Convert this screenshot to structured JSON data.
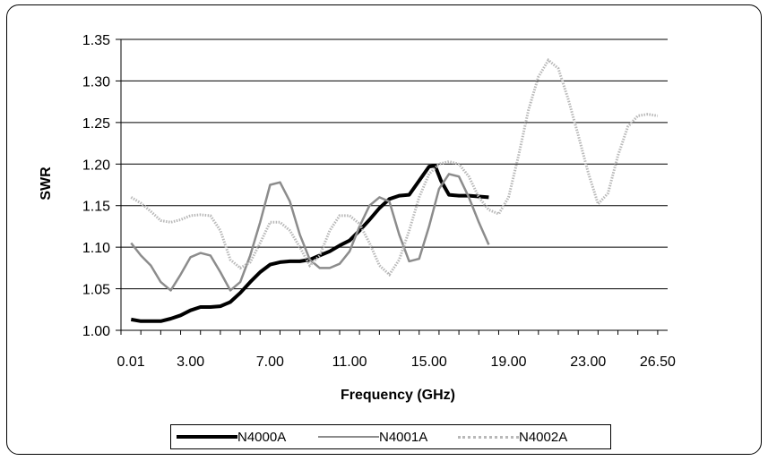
{
  "chart_data": {
    "type": "line",
    "title": "",
    "xlabel": "Frequency (GHz)",
    "ylabel": "SWR",
    "x_tick_labels": [
      "0.01",
      "3.00",
      "7.00",
      "11.00",
      "15.00",
      "19.00",
      "23.00",
      "26.50"
    ],
    "y_tick_labels": [
      "1.00",
      "1.05",
      "1.10",
      "1.15",
      "1.20",
      "1.25",
      "1.30",
      "1.35"
    ],
    "xlim": [
      0,
      27.5
    ],
    "ylim": [
      1.0,
      1.35
    ],
    "grid": "horizontal",
    "legend_position": "bottom",
    "series": [
      {
        "name": "N4000A",
        "color": "#000000",
        "style": "solid",
        "x": [
          0.01,
          0.5,
          1.0,
          1.5,
          2.0,
          2.5,
          3.0,
          3.5,
          4.0,
          4.5,
          5.0,
          5.5,
          6.0,
          6.5,
          7.0,
          7.5,
          8.0,
          8.5,
          9.0,
          9.5,
          10.0,
          10.5,
          11.0,
          11.5,
          12.0,
          12.5,
          13.0,
          13.5,
          14.0,
          14.5,
          15.0,
          15.3,
          15.6,
          16.0,
          16.5,
          17.0,
          17.5,
          18.0
        ],
        "y": [
          1.013,
          1.011,
          1.011,
          1.011,
          1.014,
          1.018,
          1.024,
          1.028,
          1.028,
          1.029,
          1.034,
          1.045,
          1.058,
          1.07,
          1.079,
          1.082,
          1.083,
          1.083,
          1.085,
          1.09,
          1.095,
          1.102,
          1.108,
          1.12,
          1.133,
          1.147,
          1.158,
          1.162,
          1.163,
          1.18,
          1.197,
          1.198,
          1.18,
          1.163,
          1.162,
          1.162,
          1.161,
          1.16
        ]
      },
      {
        "name": "N4001A",
        "color": "#8c8c8c",
        "style": "solid",
        "x": [
          0.01,
          0.5,
          1.0,
          1.5,
          2.0,
          2.5,
          3.0,
          3.5,
          4.0,
          4.5,
          5.0,
          5.5,
          6.0,
          6.5,
          7.0,
          7.5,
          8.0,
          8.5,
          9.0,
          9.5,
          10.0,
          10.5,
          11.0,
          11.5,
          12.0,
          12.5,
          13.0,
          13.5,
          14.0,
          14.5,
          15.0,
          15.5,
          16.0,
          16.5,
          17.0,
          17.5,
          18.0
        ],
        "y": [
          1.105,
          1.09,
          1.078,
          1.058,
          1.048,
          1.067,
          1.088,
          1.093,
          1.09,
          1.07,
          1.048,
          1.058,
          1.09,
          1.13,
          1.175,
          1.178,
          1.155,
          1.115,
          1.085,
          1.075,
          1.075,
          1.08,
          1.095,
          1.125,
          1.15,
          1.16,
          1.155,
          1.115,
          1.083,
          1.086,
          1.125,
          1.17,
          1.188,
          1.185,
          1.16,
          1.13,
          1.103
        ]
      },
      {
        "name": "N4002A",
        "color": "#b8b8b8",
        "style": "dotted",
        "x": [
          0.01,
          0.5,
          1.0,
          1.5,
          2.0,
          2.5,
          3.0,
          3.5,
          4.0,
          4.5,
          5.0,
          5.5,
          6.0,
          6.5,
          7.0,
          7.5,
          8.0,
          8.5,
          9.0,
          9.5,
          10.0,
          10.5,
          11.0,
          11.5,
          12.0,
          12.5,
          13.0,
          13.5,
          14.0,
          14.5,
          15.0,
          15.5,
          16.0,
          16.5,
          17.0,
          17.5,
          18.0,
          18.5,
          19.0,
          19.5,
          20.0,
          20.5,
          21.0,
          21.5,
          22.0,
          22.5,
          23.0,
          23.5,
          24.0,
          24.5,
          25.0,
          25.5,
          26.0,
          26.5
        ],
        "y": [
          1.16,
          1.153,
          1.143,
          1.132,
          1.13,
          1.133,
          1.138,
          1.139,
          1.138,
          1.12,
          1.085,
          1.075,
          1.082,
          1.105,
          1.13,
          1.13,
          1.12,
          1.1,
          1.078,
          1.09,
          1.12,
          1.138,
          1.138,
          1.128,
          1.105,
          1.078,
          1.067,
          1.085,
          1.12,
          1.16,
          1.188,
          1.2,
          1.203,
          1.2,
          1.185,
          1.16,
          1.145,
          1.14,
          1.16,
          1.21,
          1.265,
          1.305,
          1.325,
          1.315,
          1.278,
          1.235,
          1.19,
          1.152,
          1.165,
          1.21,
          1.245,
          1.258,
          1.26,
          1.258
        ]
      }
    ]
  }
}
